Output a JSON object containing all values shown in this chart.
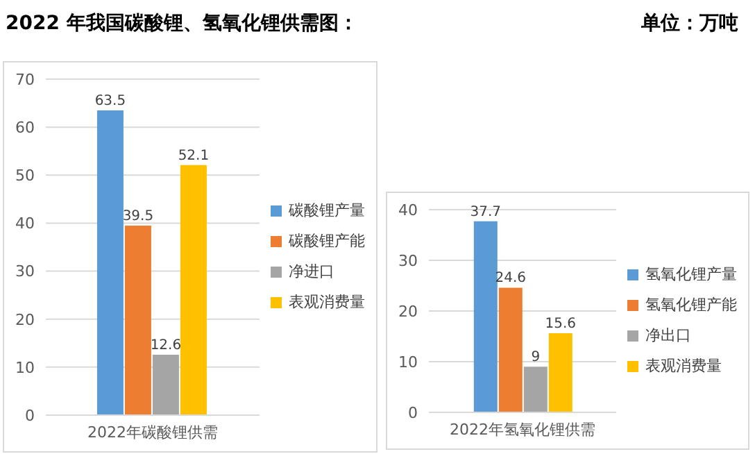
{
  "chart_data": [
    {
      "type": "bar",
      "title": "2022 年我国碳酸锂、氢氧化锂供需图：",
      "annotations": [
        "单位：万吨"
      ],
      "categories": [
        "2022年碳酸锂供需"
      ],
      "series": [
        {
          "name": "碳酸锂产量",
          "color": "#5b9bd5",
          "values": [
            63.5
          ]
        },
        {
          "name": "碳酸锂产能",
          "color": "#ed7d31",
          "values": [
            39.5
          ]
        },
        {
          "name": "净进口",
          "color": "#a5a5a5",
          "values": [
            12.6
          ]
        },
        {
          "name": "表观消费量",
          "color": "#ffc000",
          "values": [
            52.1
          ]
        }
      ],
      "ylim": [
        0,
        70
      ],
      "yticks": [
        0,
        10,
        20,
        30,
        40,
        50,
        60,
        70
      ],
      "grid": "y",
      "legend": "right",
      "data_labels": true
    },
    {
      "type": "bar",
      "categories": [
        "2022年氢氧化锂供需"
      ],
      "series": [
        {
          "name": "氢氧化锂产量",
          "color": "#5b9bd5",
          "values": [
            37.7
          ]
        },
        {
          "name": "氢氧化锂产能",
          "color": "#ed7d31",
          "values": [
            24.6
          ]
        },
        {
          "name": "净出口",
          "color": "#a5a5a5",
          "values": [
            9
          ]
        },
        {
          "name": "表观消费量",
          "color": "#ffc000",
          "values": [
            15.6
          ]
        }
      ],
      "ylim": [
        0,
        40
      ],
      "yticks": [
        0,
        10,
        20,
        30,
        40
      ],
      "grid": "y",
      "legend": "right",
      "data_labels": true
    }
  ]
}
